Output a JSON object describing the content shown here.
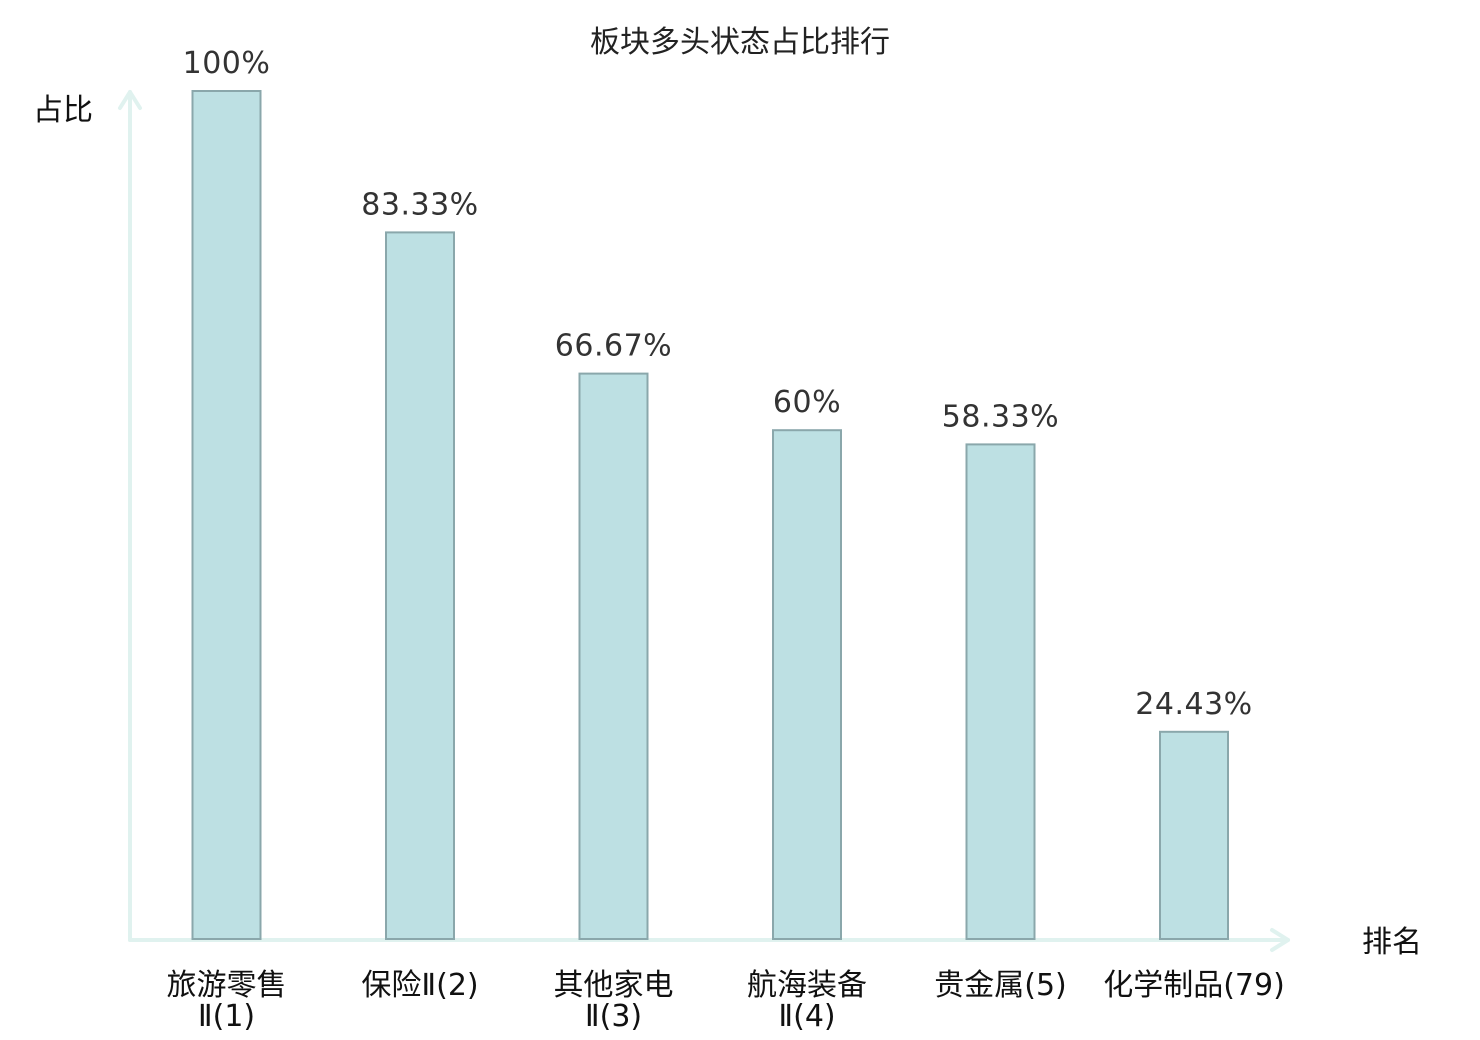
{
  "chart_data": {
    "type": "bar",
    "title": "板块多头状态占比排行",
    "ylabel": "占比",
    "xlabel": "排名",
    "ylim": [
      0,
      100
    ],
    "grid": false,
    "categories": [
      {
        "name": "旅游零售Ⅱ",
        "rank": "(1)",
        "line1": "旅游零售",
        "line2": "Ⅱ(1)",
        "highlight": false
      },
      {
        "name": "保险Ⅱ",
        "rank": "(2)",
        "line1": "保险Ⅱ(2)",
        "line2": "",
        "highlight": false
      },
      {
        "name": "其他家电Ⅱ",
        "rank": "(3)",
        "line1": "其他家电",
        "line2": "Ⅱ(3)",
        "highlight": false
      },
      {
        "name": "航海装备Ⅱ",
        "rank": "(4)",
        "line1": "航海装备",
        "line2": "Ⅱ(4)",
        "highlight": false
      },
      {
        "name": "贵金属",
        "rank": "(5)",
        "line1": "贵金属(5)",
        "line2": "",
        "highlight": false
      },
      {
        "name": "化学制品",
        "rank": "(79)",
        "line1": "化学制品(79)",
        "line2": "",
        "highlight": true
      }
    ],
    "values": [
      100,
      83.33,
      66.67,
      60,
      58.33,
      24.43
    ],
    "value_labels": [
      "100%",
      "83.33%",
      "66.67%",
      "60%",
      "58.33%",
      "24.43%"
    ],
    "colors": {
      "bar_fill": "#bde0e3",
      "bar_stroke": "#8aa7ab",
      "axis": "#e0f2ef",
      "highlight_text": "#e0191b",
      "label_text": "#333333"
    }
  }
}
